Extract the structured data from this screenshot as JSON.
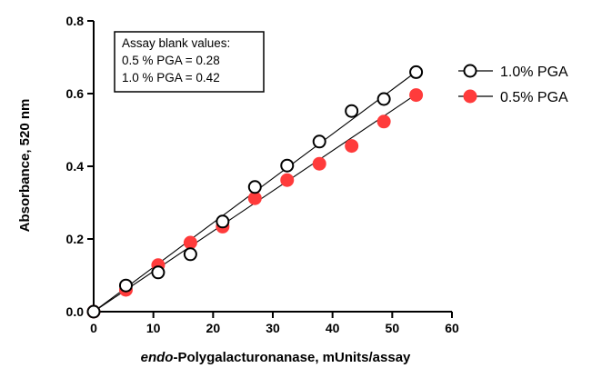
{
  "chart_data": {
    "type": "scatter",
    "xlabel_italic": "endo",
    "xlabel_rest": "-Polygalacturonanase, mUnits/assay",
    "ylabel": "Absorbance, 520 nm",
    "xlim": [
      0,
      60
    ],
    "ylim": [
      0,
      0.8
    ],
    "x_ticks": [
      0,
      10,
      20,
      30,
      40,
      50,
      60
    ],
    "y_ticks": [
      0.0,
      0.2,
      0.4,
      0.6,
      0.8
    ],
    "x_tick_labels": [
      "0",
      "10",
      "20",
      "30",
      "40",
      "50",
      "60"
    ],
    "y_tick_labels": [
      "0.0",
      "0.2",
      "0.4",
      "0.6",
      "0.8"
    ],
    "grid": false,
    "legend_position": "right",
    "annotation": {
      "lines": [
        "Assay blank values:",
        "0.5 % PGA = 0.28",
        "1.0 % PGA = 0.42"
      ],
      "position": "top-left"
    },
    "series": [
      {
        "name": "1.0% PGA",
        "marker": "open-circle",
        "color": "#000000",
        "fit_line": [
          [
            0,
            0.0
          ],
          [
            54,
            0.66
          ]
        ],
        "points": [
          [
            0,
            0.0
          ],
          [
            5.4,
            0.072
          ],
          [
            10.8,
            0.108
          ],
          [
            16.2,
            0.158
          ],
          [
            21.6,
            0.248
          ],
          [
            27,
            0.343
          ],
          [
            32.4,
            0.402
          ],
          [
            37.8,
            0.468
          ],
          [
            43.2,
            0.552
          ],
          [
            48.6,
            0.585
          ],
          [
            54,
            0.659
          ]
        ]
      },
      {
        "name": "0.5% PGA",
        "marker": "filled-circle",
        "color": "#ff3b3b",
        "fit_line": [
          [
            0,
            0.0
          ],
          [
            54,
            0.598
          ]
        ],
        "points": [
          [
            0,
            0.0
          ],
          [
            5.4,
            0.06
          ],
          [
            10.8,
            0.128
          ],
          [
            16.2,
            0.19
          ],
          [
            21.6,
            0.234
          ],
          [
            27,
            0.312
          ],
          [
            32.4,
            0.362
          ],
          [
            37.8,
            0.407
          ],
          [
            43.2,
            0.456
          ],
          [
            48.6,
            0.523
          ],
          [
            54,
            0.596
          ]
        ]
      }
    ]
  }
}
